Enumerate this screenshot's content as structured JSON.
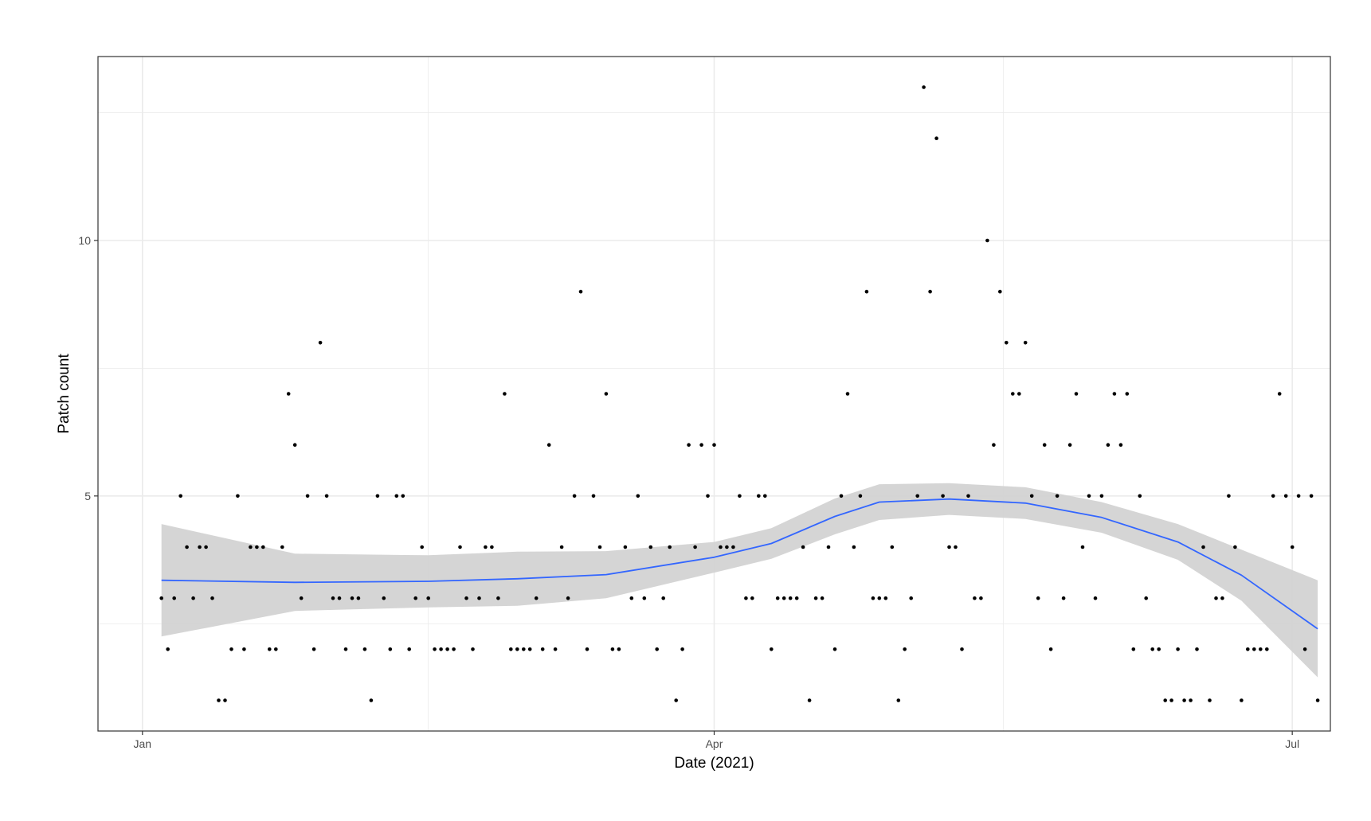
{
  "chart_data": {
    "type": "scatter",
    "xlabel": "Date (2021)",
    "ylabel": "Patch count",
    "x_ticks": [
      {
        "date": "2021-01-01",
        "label": "Jan"
      },
      {
        "date": "2021-04-01",
        "label": "Apr"
      },
      {
        "date": "2021-07-01",
        "label": "Jul"
      }
    ],
    "y_ticks": [
      5,
      10
    ],
    "xlim": [
      "2020-12-25",
      "2021-07-07"
    ],
    "ylim": [
      0.4,
      13.6
    ],
    "grid": true,
    "colors": {
      "points": "#000000",
      "smooth_line": "#3366FF",
      "confidence_band": "#d3d3d3",
      "grid": "#ebebeb",
      "panel_border": "#333333"
    },
    "points": [
      [
        "2021-01-04",
        3
      ],
      [
        "2021-01-05",
        2
      ],
      [
        "2021-01-06",
        3
      ],
      [
        "2021-01-07",
        5
      ],
      [
        "2021-01-08",
        4
      ],
      [
        "2021-01-09",
        3
      ],
      [
        "2021-01-10",
        4
      ],
      [
        "2021-01-11",
        4
      ],
      [
        "2021-01-12",
        3
      ],
      [
        "2021-01-13",
        1
      ],
      [
        "2021-01-14",
        1
      ],
      [
        "2021-01-15",
        2
      ],
      [
        "2021-01-16",
        5
      ],
      [
        "2021-01-17",
        2
      ],
      [
        "2021-01-18",
        4
      ],
      [
        "2021-01-19",
        4
      ],
      [
        "2021-01-20",
        4
      ],
      [
        "2021-01-21",
        2
      ],
      [
        "2021-01-22",
        2
      ],
      [
        "2021-01-23",
        4
      ],
      [
        "2021-01-24",
        7
      ],
      [
        "2021-01-25",
        6
      ],
      [
        "2021-01-26",
        3
      ],
      [
        "2021-01-27",
        5
      ],
      [
        "2021-01-28",
        2
      ],
      [
        "2021-01-29",
        8
      ],
      [
        "2021-01-30",
        5
      ],
      [
        "2021-01-31",
        3
      ],
      [
        "2021-02-01",
        3
      ],
      [
        "2021-02-02",
        2
      ],
      [
        "2021-02-03",
        3
      ],
      [
        "2021-02-04",
        3
      ],
      [
        "2021-02-05",
        2
      ],
      [
        "2021-02-06",
        1
      ],
      [
        "2021-02-07",
        5
      ],
      [
        "2021-02-08",
        3
      ],
      [
        "2021-02-09",
        2
      ],
      [
        "2021-02-10",
        5
      ],
      [
        "2021-02-11",
        5
      ],
      [
        "2021-02-12",
        2
      ],
      [
        "2021-02-13",
        3
      ],
      [
        "2021-02-14",
        4
      ],
      [
        "2021-02-15",
        3
      ],
      [
        "2021-02-16",
        2
      ],
      [
        "2021-02-17",
        2
      ],
      [
        "2021-02-18",
        2
      ],
      [
        "2021-02-19",
        2
      ],
      [
        "2021-02-20",
        4
      ],
      [
        "2021-02-21",
        3
      ],
      [
        "2021-02-22",
        2
      ],
      [
        "2021-02-23",
        3
      ],
      [
        "2021-02-24",
        4
      ],
      [
        "2021-02-25",
        4
      ],
      [
        "2021-02-26",
        3
      ],
      [
        "2021-02-27",
        7
      ],
      [
        "2021-02-28",
        2
      ],
      [
        "2021-03-01",
        2
      ],
      [
        "2021-03-02",
        2
      ],
      [
        "2021-03-03",
        2
      ],
      [
        "2021-03-04",
        3
      ],
      [
        "2021-03-05",
        2
      ],
      [
        "2021-03-06",
        6
      ],
      [
        "2021-03-07",
        2
      ],
      [
        "2021-03-08",
        4
      ],
      [
        "2021-03-09",
        3
      ],
      [
        "2021-03-10",
        5
      ],
      [
        "2021-03-11",
        9
      ],
      [
        "2021-03-12",
        2
      ],
      [
        "2021-03-13",
        5
      ],
      [
        "2021-03-14",
        4
      ],
      [
        "2021-03-15",
        7
      ],
      [
        "2021-03-16",
        2
      ],
      [
        "2021-03-17",
        2
      ],
      [
        "2021-03-18",
        4
      ],
      [
        "2021-03-19",
        3
      ],
      [
        "2021-03-20",
        5
      ],
      [
        "2021-03-21",
        3
      ],
      [
        "2021-03-22",
        4
      ],
      [
        "2021-03-23",
        2
      ],
      [
        "2021-03-24",
        3
      ],
      [
        "2021-03-25",
        4
      ],
      [
        "2021-03-26",
        1
      ],
      [
        "2021-03-27",
        2
      ],
      [
        "2021-03-28",
        6
      ],
      [
        "2021-03-29",
        4
      ],
      [
        "2021-03-30",
        6
      ],
      [
        "2021-03-31",
        5
      ],
      [
        "2021-04-01",
        6
      ],
      [
        "2021-04-02",
        4
      ],
      [
        "2021-04-03",
        4
      ],
      [
        "2021-04-04",
        4
      ],
      [
        "2021-04-05",
        5
      ],
      [
        "2021-04-06",
        3
      ],
      [
        "2021-04-07",
        3
      ],
      [
        "2021-04-08",
        5
      ],
      [
        "2021-04-09",
        5
      ],
      [
        "2021-04-10",
        2
      ],
      [
        "2021-04-11",
        3
      ],
      [
        "2021-04-12",
        3
      ],
      [
        "2021-04-13",
        3
      ],
      [
        "2021-04-14",
        3
      ],
      [
        "2021-04-15",
        4
      ],
      [
        "2021-04-16",
        1
      ],
      [
        "2021-04-17",
        3
      ],
      [
        "2021-04-18",
        3
      ],
      [
        "2021-04-19",
        4
      ],
      [
        "2021-04-20",
        2
      ],
      [
        "2021-04-21",
        5
      ],
      [
        "2021-04-22",
        7
      ],
      [
        "2021-04-23",
        4
      ],
      [
        "2021-04-24",
        5
      ],
      [
        "2021-04-25",
        9
      ],
      [
        "2021-04-26",
        3
      ],
      [
        "2021-04-27",
        3
      ],
      [
        "2021-04-28",
        3
      ],
      [
        "2021-04-29",
        4
      ],
      [
        "2021-04-30",
        1
      ],
      [
        "2021-05-01",
        2
      ],
      [
        "2021-05-02",
        3
      ],
      [
        "2021-05-03",
        5
      ],
      [
        "2021-05-04",
        13
      ],
      [
        "2021-05-05",
        9
      ],
      [
        "2021-05-06",
        12
      ],
      [
        "2021-05-07",
        5
      ],
      [
        "2021-05-08",
        4
      ],
      [
        "2021-05-09",
        4
      ],
      [
        "2021-05-10",
        2
      ],
      [
        "2021-05-11",
        5
      ],
      [
        "2021-05-12",
        3
      ],
      [
        "2021-05-13",
        3
      ],
      [
        "2021-05-14",
        10
      ],
      [
        "2021-05-15",
        6
      ],
      [
        "2021-05-16",
        9
      ],
      [
        "2021-05-17",
        8
      ],
      [
        "2021-05-18",
        7
      ],
      [
        "2021-05-19",
        7
      ],
      [
        "2021-05-20",
        8
      ],
      [
        "2021-05-21",
        5
      ],
      [
        "2021-05-22",
        3
      ],
      [
        "2021-05-23",
        6
      ],
      [
        "2021-05-24",
        2
      ],
      [
        "2021-05-25",
        5
      ],
      [
        "2021-05-26",
        3
      ],
      [
        "2021-05-27",
        6
      ],
      [
        "2021-05-28",
        7
      ],
      [
        "2021-05-29",
        4
      ],
      [
        "2021-05-30",
        5
      ],
      [
        "2021-05-31",
        3
      ],
      [
        "2021-06-01",
        5
      ],
      [
        "2021-06-02",
        6
      ],
      [
        "2021-06-03",
        7
      ],
      [
        "2021-06-04",
        6
      ],
      [
        "2021-06-05",
        7
      ],
      [
        "2021-06-06",
        2
      ],
      [
        "2021-06-07",
        5
      ],
      [
        "2021-06-08",
        3
      ],
      [
        "2021-06-09",
        2
      ],
      [
        "2021-06-10",
        2
      ],
      [
        "2021-06-11",
        1
      ],
      [
        "2021-06-12",
        1
      ],
      [
        "2021-06-13",
        2
      ],
      [
        "2021-06-14",
        1
      ],
      [
        "2021-06-15",
        1
      ],
      [
        "2021-06-16",
        2
      ],
      [
        "2021-06-17",
        4
      ],
      [
        "2021-06-18",
        1
      ],
      [
        "2021-06-19",
        3
      ],
      [
        "2021-06-20",
        3
      ],
      [
        "2021-06-21",
        5
      ],
      [
        "2021-06-22",
        4
      ],
      [
        "2021-06-23",
        1
      ],
      [
        "2021-06-24",
        2
      ],
      [
        "2021-06-25",
        2
      ],
      [
        "2021-06-26",
        2
      ],
      [
        "2021-06-27",
        2
      ],
      [
        "2021-06-28",
        5
      ],
      [
        "2021-06-29",
        7
      ],
      [
        "2021-06-30",
        5
      ],
      [
        "2021-07-01",
        4
      ],
      [
        "2021-07-02",
        5
      ],
      [
        "2021-07-03",
        2
      ],
      [
        "2021-07-04",
        5
      ],
      [
        "2021-07-05",
        1
      ]
    ],
    "smooth": {
      "method": "loess",
      "fit": [
        [
          "2021-01-04",
          3.35
        ],
        [
          "2021-01-25",
          3.31
        ],
        [
          "2021-02-15",
          3.33
        ],
        [
          "2021-03-01",
          3.38
        ],
        [
          "2021-03-15",
          3.46
        ],
        [
          "2021-04-01",
          3.8
        ],
        [
          "2021-04-10",
          4.07
        ],
        [
          "2021-04-20",
          4.6
        ],
        [
          "2021-04-27",
          4.88
        ],
        [
          "2021-05-08",
          4.94
        ],
        [
          "2021-05-20",
          4.86
        ],
        [
          "2021-06-01",
          4.58
        ],
        [
          "2021-06-13",
          4.1
        ],
        [
          "2021-06-23",
          3.45
        ],
        [
          "2021-07-05",
          2.4
        ]
      ],
      "lower": [
        [
          "2021-01-04",
          2.25
        ],
        [
          "2021-01-25",
          2.75
        ],
        [
          "2021-02-15",
          2.82
        ],
        [
          "2021-03-01",
          2.85
        ],
        [
          "2021-03-15",
          3.0
        ],
        [
          "2021-04-01",
          3.5
        ],
        [
          "2021-04-10",
          3.77
        ],
        [
          "2021-04-20",
          4.25
        ],
        [
          "2021-04-27",
          4.53
        ],
        [
          "2021-05-08",
          4.63
        ],
        [
          "2021-05-20",
          4.55
        ],
        [
          "2021-06-01",
          4.28
        ],
        [
          "2021-06-13",
          3.75
        ],
        [
          "2021-06-23",
          2.95
        ],
        [
          "2021-07-05",
          1.45
        ]
      ],
      "upper": [
        [
          "2021-01-04",
          4.45
        ],
        [
          "2021-01-25",
          3.87
        ],
        [
          "2021-02-15",
          3.84
        ],
        [
          "2021-03-01",
          3.91
        ],
        [
          "2021-03-15",
          3.92
        ],
        [
          "2021-04-01",
          4.1
        ],
        [
          "2021-04-10",
          4.37
        ],
        [
          "2021-04-20",
          4.95
        ],
        [
          "2021-04-27",
          5.23
        ],
        [
          "2021-05-08",
          5.25
        ],
        [
          "2021-05-20",
          5.17
        ],
        [
          "2021-06-01",
          4.88
        ],
        [
          "2021-06-13",
          4.45
        ],
        [
          "2021-06-23",
          3.95
        ],
        [
          "2021-07-05",
          3.35
        ]
      ]
    }
  }
}
